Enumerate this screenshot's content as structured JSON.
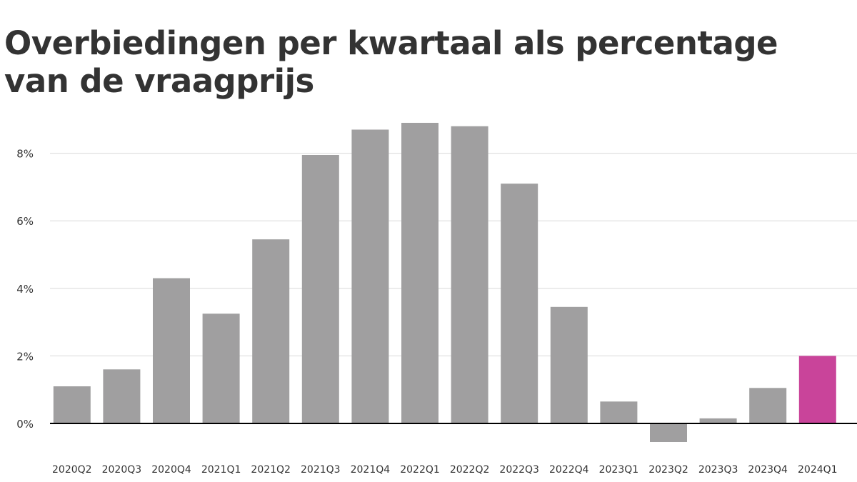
{
  "chart_data": {
    "type": "bar",
    "title": "Overbiedingen per kwartaal als percentage van de vraagprijs",
    "xlabel": "",
    "ylabel": "",
    "ylim": [
      -0.8,
      9.5
    ],
    "yticks": [
      0,
      2,
      4,
      6,
      8
    ],
    "ytick_labels": [
      "0%",
      "2%",
      "4%",
      "6%",
      "8%"
    ],
    "grid": true,
    "categories": [
      "2020Q2",
      "2020Q3",
      "2020Q4",
      "2021Q1",
      "2021Q2",
      "2021Q3",
      "2021Q4",
      "2022Q1",
      "2022Q2",
      "2022Q3",
      "2022Q4",
      "2023Q1",
      "2023Q2",
      "2023Q3",
      "2023Q4",
      "2024Q1"
    ],
    "values": [
      1.1,
      1.6,
      4.3,
      3.25,
      5.45,
      7.95,
      8.7,
      8.9,
      8.8,
      7.1,
      3.45,
      0.65,
      -0.55,
      0.15,
      1.05,
      2.0
    ],
    "colors": {
      "default": "#a09fa0",
      "highlight": "#c9449a",
      "grid": "#d9d9d9",
      "axis": "#000000"
    },
    "highlight_index": 15
  }
}
